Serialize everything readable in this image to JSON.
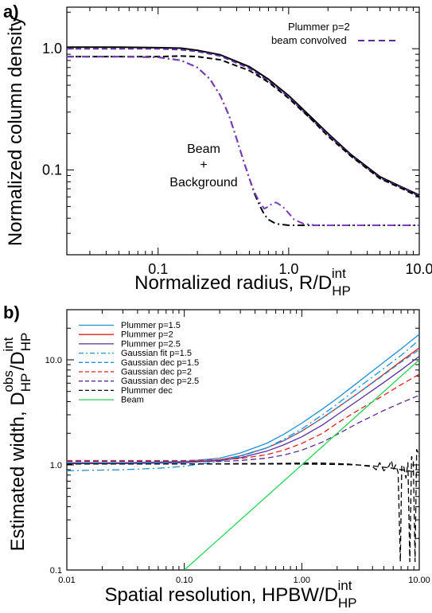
{
  "chart_data": [
    {
      "panel": "a)",
      "type": "line",
      "xlabel": "Normalized radius, R/D",
      "xlabel_sub": "HP",
      "xlabel_sup": "int",
      "ylabel": "Normalized column density",
      "xscale": "log",
      "yscale": "log",
      "xlim": [
        0.02,
        10.0
      ],
      "ylim": [
        0.02,
        2.2
      ],
      "xticks": [
        {
          "v": 0.1,
          "label": "0.1"
        },
        {
          "v": 1.0,
          "label": "1.0"
        },
        {
          "v": 10.0,
          "label": "10.0"
        }
      ],
      "yticks": [
        {
          "v": 0.1,
          "label": "0.1"
        },
        {
          "v": 1.0,
          "label": "1.0"
        }
      ],
      "legend": {
        "placement": "top-right",
        "entries": [
          {
            "label": "Plummer p=2",
            "series": ""
          },
          {
            "label": "beam convolved",
            "series": "plummer_conv"
          }
        ]
      },
      "annotation": {
        "lines": [
          "Beam",
          "+",
          "Background"
        ]
      },
      "series": [
        {
          "id": "plummer",
          "color": "#000000",
          "dash": "solid",
          "x": [
            0.02,
            0.05,
            0.1,
            0.15,
            0.2,
            0.3,
            0.5,
            0.7,
            1.0,
            1.5,
            2,
            3,
            5,
            7,
            10
          ],
          "y": [
            1.03,
            1.03,
            1.02,
            1.01,
            0.97,
            0.89,
            0.71,
            0.56,
            0.41,
            0.27,
            0.2,
            0.134,
            0.088,
            0.074,
            0.062
          ]
        },
        {
          "id": "plummer_conv",
          "color": "#5a2ca0",
          "dash": "dash",
          "x": [
            0.02,
            0.05,
            0.1,
            0.15,
            0.2,
            0.3,
            0.5,
            0.7,
            1.0,
            1.5,
            2,
            3,
            5,
            7,
            10
          ],
          "y": [
            1.0,
            1.0,
            1.0,
            0.98,
            0.95,
            0.87,
            0.69,
            0.54,
            0.4,
            0.26,
            0.195,
            0.131,
            0.086,
            0.073,
            0.061
          ]
        },
        {
          "id": "plummer_base",
          "color": "#000000",
          "dash": "dash",
          "x": [
            0.02,
            0.05,
            0.1,
            0.15,
            0.2,
            0.3,
            0.5,
            0.7,
            1.0,
            1.5,
            2,
            3,
            5,
            7,
            10
          ],
          "y": [
            0.86,
            0.86,
            0.86,
            0.87,
            0.86,
            0.81,
            0.66,
            0.53,
            0.39,
            0.26,
            0.19,
            0.13,
            0.085,
            0.072,
            0.06
          ]
        },
        {
          "id": "beam_bg",
          "color": "#000000",
          "dash": "dashdot",
          "x": [
            0.02,
            0.05,
            0.1,
            0.15,
            0.2,
            0.25,
            0.3,
            0.35,
            0.4,
            0.45,
            0.5,
            0.55,
            0.6,
            0.65,
            0.7,
            0.8,
            1.0,
            2.0,
            10.0
          ],
          "y": [
            0.86,
            0.86,
            0.85,
            0.8,
            0.7,
            0.56,
            0.41,
            0.28,
            0.18,
            0.12,
            0.085,
            0.063,
            0.051,
            0.043,
            0.039,
            0.036,
            0.035,
            0.035,
            0.035
          ]
        },
        {
          "id": "beam_bg_purple",
          "color": "#7b3fbf",
          "dash": "dashdot",
          "x": [
            0.02,
            0.05,
            0.1,
            0.15,
            0.2,
            0.25,
            0.3,
            0.35,
            0.4,
            0.45,
            0.5,
            0.55,
            0.6,
            0.65,
            0.7,
            0.75,
            0.8,
            0.9,
            1.0,
            1.1,
            1.3,
            1.6,
            2.0,
            10.0
          ],
          "y": [
            0.86,
            0.86,
            0.85,
            0.8,
            0.7,
            0.56,
            0.41,
            0.28,
            0.18,
            0.12,
            0.085,
            0.065,
            0.054,
            0.048,
            0.05,
            0.053,
            0.054,
            0.05,
            0.044,
            0.039,
            0.036,
            0.035,
            0.035,
            0.035
          ]
        }
      ]
    },
    {
      "panel": "b)",
      "type": "line",
      "xlabel": "Spatial resolution, HPBW/D",
      "xlabel_sub": "HP",
      "xlabel_sup": "int",
      "ylabel": "Estimated width, D",
      "ylabel_sub1": "HP",
      "ylabel_sup1": "obs",
      "ylabel_mid": "/D",
      "ylabel_sub2": "HP",
      "ylabel_sup2": "int",
      "xscale": "log",
      "yscale": "log",
      "xlim": [
        0.01,
        10.0
      ],
      "ylim": [
        0.1,
        30.0
      ],
      "xticks": [
        {
          "v": 0.01,
          "label": "0.01"
        },
        {
          "v": 0.1,
          "label": "0.10"
        },
        {
          "v": 1.0,
          "label": "1.00"
        },
        {
          "v": 10.0,
          "label": "10.00"
        }
      ],
      "yticks": [
        {
          "v": 0.1,
          "label": "0.1"
        },
        {
          "v": 1.0,
          "label": "1.0"
        },
        {
          "v": 10.0,
          "label": "10.0"
        }
      ],
      "legend": {
        "placement": "top-left"
      },
      "series": [
        {
          "name": "Plummer  p=1.5",
          "color": "#1f8fd6",
          "dash": "solid",
          "x": [
            0.01,
            0.03,
            0.1,
            0.2,
            0.3,
            0.5,
            0.7,
            1,
            1.5,
            2,
            3,
            5,
            7,
            10
          ],
          "y": [
            1.05,
            1.05,
            1.08,
            1.16,
            1.3,
            1.6,
            1.95,
            2.5,
            3.4,
            4.3,
            6.1,
            9.5,
            12.7,
            17.5
          ]
        },
        {
          "name": "Plummer  p=2",
          "color": "#e0201c",
          "dash": "solid",
          "x": [
            0.01,
            0.03,
            0.1,
            0.2,
            0.3,
            0.5,
            0.7,
            1,
            1.5,
            2,
            3,
            5,
            7,
            10
          ],
          "y": [
            1.04,
            1.04,
            1.06,
            1.12,
            1.22,
            1.45,
            1.7,
            2.1,
            2.8,
            3.5,
            4.8,
            7.3,
            9.7,
            13.0
          ]
        },
        {
          "name": "Plummer  p=2.5",
          "color": "#5a2ca0",
          "dash": "solid",
          "x": [
            0.01,
            0.03,
            0.1,
            0.2,
            0.3,
            0.5,
            0.7,
            1,
            1.5,
            2,
            3,
            5,
            7,
            10
          ],
          "y": [
            1.03,
            1.03,
            1.05,
            1.1,
            1.17,
            1.35,
            1.55,
            1.85,
            2.4,
            3.0,
            4.1,
            6.1,
            8.0,
            10.8
          ]
        },
        {
          "name": "Gaussian  fit  p=1.5",
          "color": "#1f8fd6",
          "dash": "dashdot",
          "x": [
            0.01,
            0.03,
            0.06,
            0.1,
            0.2,
            0.3,
            0.5,
            0.7,
            1,
            1.5,
            2,
            3,
            5,
            7,
            10
          ],
          "y": [
            0.88,
            0.9,
            0.93,
            0.97,
            1.08,
            1.2,
            1.45,
            1.75,
            2.2,
            3.0,
            3.8,
            5.4,
            8.3,
            11.0,
            15.5
          ]
        },
        {
          "name": "Gaussian  dec  p=1.5",
          "color": "#1f8fd6",
          "dash": "dash",
          "x": [
            0.01,
            0.03,
            0.1,
            0.2,
            0.3,
            0.5,
            0.7,
            1,
            1.5,
            2,
            3,
            5,
            7,
            10
          ],
          "y": [
            1.04,
            1.04,
            1.06,
            1.12,
            1.22,
            1.45,
            1.7,
            2.1,
            2.8,
            3.5,
            4.8,
            7.2,
            9.5,
            12.5
          ]
        },
        {
          "name": "Gaussian  dec  p=2",
          "color": "#e0201c",
          "dash": "dash",
          "x": [
            0.01,
            0.03,
            0.1,
            0.2,
            0.3,
            0.5,
            0.7,
            1,
            1.5,
            2,
            3,
            5,
            7,
            10
          ],
          "y": [
            1.1,
            1.1,
            1.1,
            1.12,
            1.15,
            1.25,
            1.38,
            1.6,
            2.0,
            2.5,
            3.3,
            4.6,
            5.8,
            7.3
          ]
        },
        {
          "name": "Gaussian  dec  p=2.5",
          "color": "#5a2ca0",
          "dash": "dash",
          "x": [
            0.01,
            0.03,
            0.1,
            0.2,
            0.3,
            0.5,
            0.7,
            1,
            1.5,
            2,
            3,
            5,
            7,
            10
          ],
          "y": [
            1.08,
            1.08,
            1.08,
            1.08,
            1.1,
            1.16,
            1.24,
            1.38,
            1.65,
            1.95,
            2.5,
            3.3,
            3.9,
            4.6
          ]
        },
        {
          "name": "Plummer  dec",
          "color": "#000000",
          "dash": "dash",
          "x": [
            0.01,
            0.03,
            0.1,
            0.3,
            0.5,
            1,
            1.5,
            2,
            2.5,
            3,
            3.5,
            4,
            4.3,
            4.6,
            5,
            5.5,
            5.8,
            6,
            6.3,
            6.6,
            6.9,
            7.1,
            7.4,
            7.7,
            8.0,
            8.3,
            8.6,
            8.9,
            9.2,
            9.5,
            9.8,
            10
          ],
          "y": [
            1.02,
            1.02,
            1.02,
            1.03,
            1.03,
            1.04,
            1.04,
            1.03,
            1.02,
            1.0,
            0.98,
            0.96,
            0.9,
            1.05,
            0.88,
            0.97,
            1.1,
            0.9,
            1.0,
            0.85,
            0.12,
            1.0,
            0.95,
            0.75,
            1.05,
            0.12,
            1.2,
            1.1,
            0.12,
            1.4,
            1.3,
            1.2
          ]
        },
        {
          "name": "Plummer  dec",
          "hidden_legend": true,
          "color": "#000000",
          "dash": "dash",
          "x": [
            0.01,
            0.1,
            0.5,
            1,
            2,
            3,
            4,
            5,
            6,
            7,
            8,
            9,
            10
          ],
          "y": [
            1.02,
            1.02,
            1.02,
            1.02,
            1.01,
            1.0,
            0.98,
            0.95,
            0.93,
            0.9,
            0.88,
            0.86,
            0.85
          ]
        },
        {
          "name": "Beam",
          "color": "#22d455",
          "dash": "solid",
          "x": [
            0.1,
            10.0
          ],
          "y": [
            0.1,
            10.0
          ]
        }
      ]
    }
  ]
}
